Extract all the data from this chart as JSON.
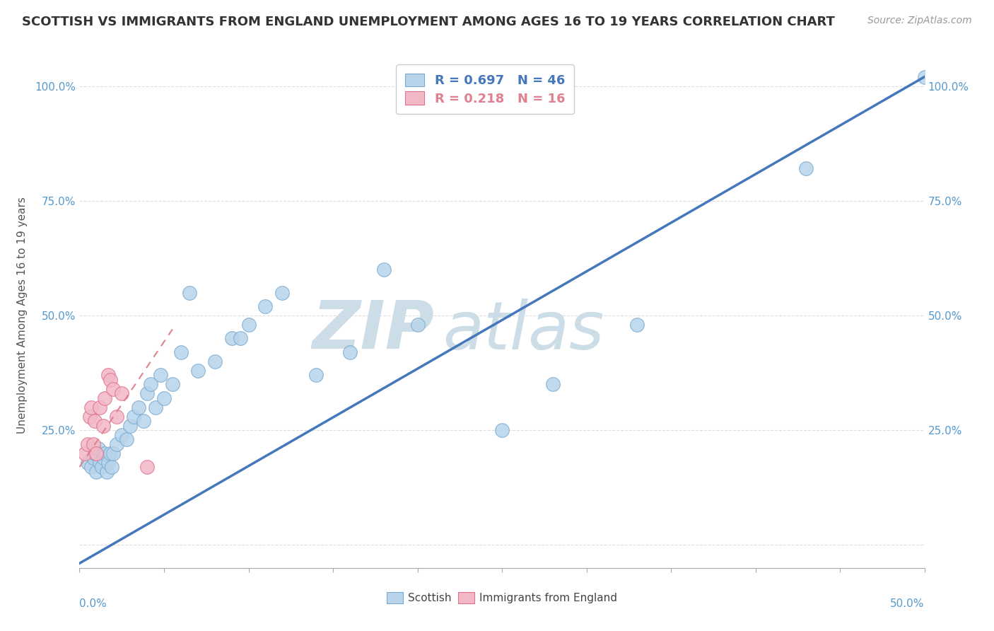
{
  "title": "SCOTTISH VS IMMIGRANTS FROM ENGLAND UNEMPLOYMENT AMONG AGES 16 TO 19 YEARS CORRELATION CHART",
  "source": "Source: ZipAtlas.com",
  "ylabel": "Unemployment Among Ages 16 to 19 years",
  "xlim": [
    0,
    0.5
  ],
  "ylim": [
    -0.05,
    1.05
  ],
  "scatter_blue": "#b8d4ea",
  "scatter_blue_edge": "#7aaad0",
  "scatter_pink": "#f2b8c6",
  "scatter_pink_edge": "#e07090",
  "line_blue": "#4477bb",
  "line_pink": "#e08090",
  "background_color": "#ffffff",
  "grid_color": "#dddddd",
  "title_color": "#333333",
  "axis_color": "#5599cc",
  "R_scottish": 0.697,
  "N_scottish": 46,
  "R_england": 0.218,
  "N_england": 16,
  "watermark_zip": "ZIP",
  "watermark_atlas": "atlas",
  "watermark_color": "#ccdde8",
  "scottish_x": [
    0.005,
    0.007,
    0.008,
    0.009,
    0.01,
    0.011,
    0.012,
    0.013,
    0.014,
    0.015,
    0.016,
    0.017,
    0.018,
    0.019,
    0.02,
    0.022,
    0.025,
    0.028,
    0.03,
    0.032,
    0.035,
    0.038,
    0.04,
    0.042,
    0.045,
    0.048,
    0.05,
    0.055,
    0.06,
    0.065,
    0.07,
    0.08,
    0.09,
    0.095,
    0.1,
    0.11,
    0.12,
    0.14,
    0.16,
    0.18,
    0.2,
    0.25,
    0.28,
    0.33,
    0.43,
    0.5
  ],
  "scottish_y": [
    0.18,
    0.17,
    0.19,
    0.2,
    0.16,
    0.21,
    0.18,
    0.17,
    0.19,
    0.2,
    0.16,
    0.18,
    0.2,
    0.17,
    0.2,
    0.22,
    0.24,
    0.23,
    0.26,
    0.28,
    0.3,
    0.27,
    0.33,
    0.35,
    0.3,
    0.37,
    0.32,
    0.35,
    0.42,
    0.55,
    0.38,
    0.4,
    0.45,
    0.45,
    0.48,
    0.52,
    0.55,
    0.37,
    0.42,
    0.6,
    0.48,
    0.25,
    0.35,
    0.48,
    0.82,
    1.02
  ],
  "scottish_line_x": [
    0.0,
    0.5
  ],
  "scottish_line_y": [
    -0.04,
    1.02
  ],
  "england_x": [
    0.003,
    0.005,
    0.006,
    0.007,
    0.008,
    0.009,
    0.01,
    0.012,
    0.014,
    0.015,
    0.017,
    0.018,
    0.02,
    0.022,
    0.025,
    0.04
  ],
  "england_y": [
    0.2,
    0.22,
    0.28,
    0.3,
    0.22,
    0.27,
    0.2,
    0.3,
    0.26,
    0.32,
    0.37,
    0.36,
    0.34,
    0.28,
    0.33,
    0.17
  ],
  "england_line_x": [
    0.0,
    0.055
  ],
  "england_line_y": [
    0.17,
    0.47
  ]
}
